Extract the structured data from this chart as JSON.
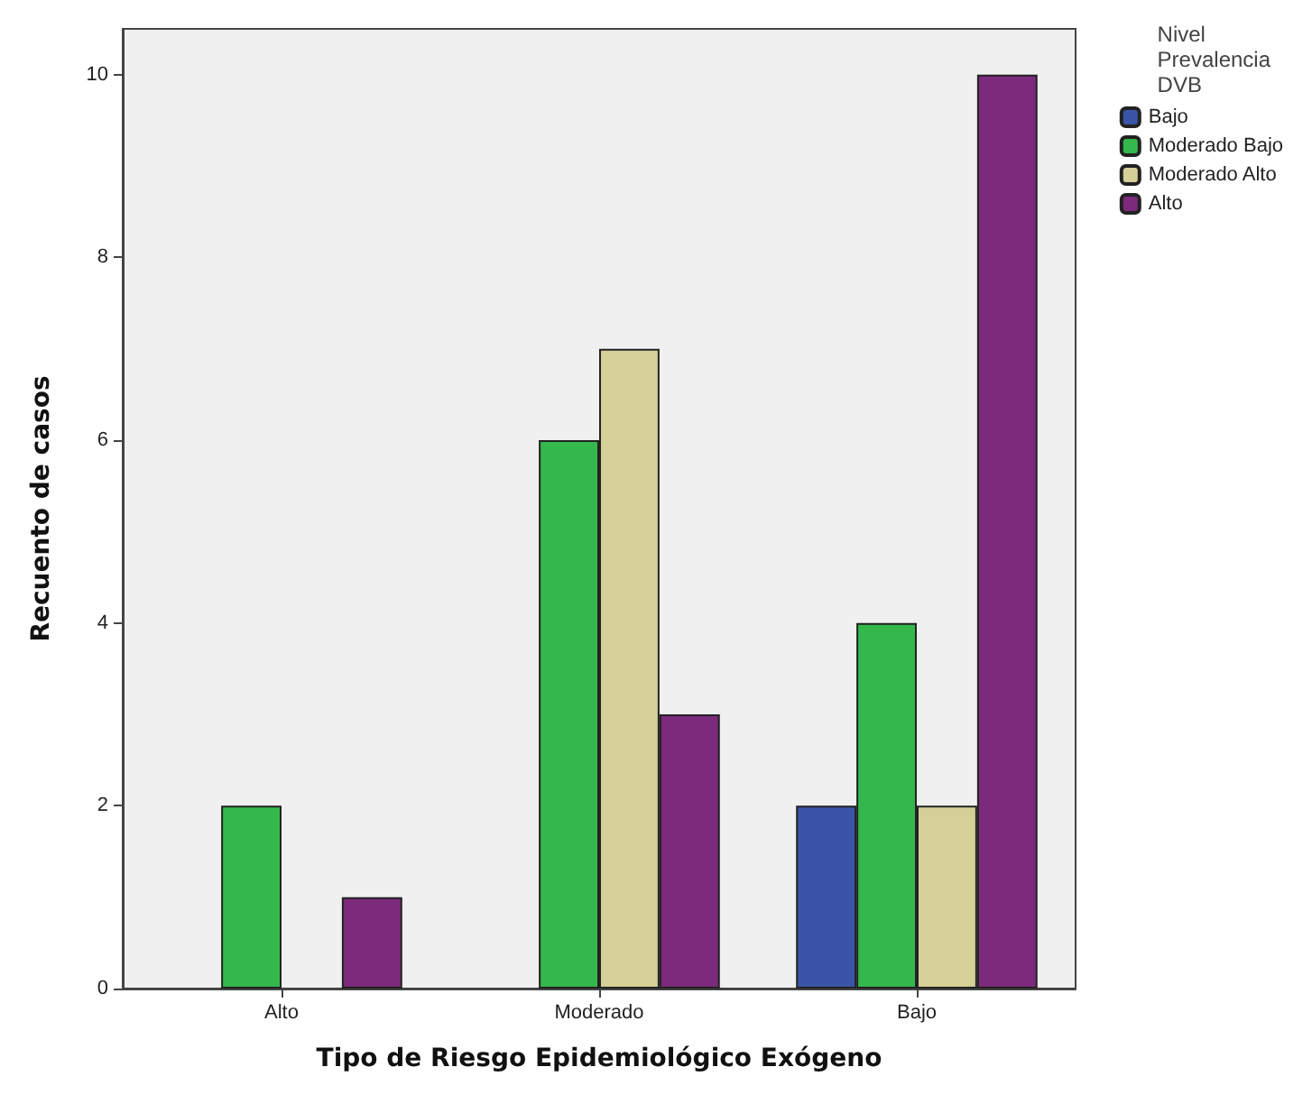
{
  "chart_data": {
    "type": "bar",
    "xlabel": "Tipo de Riesgo Epidemiológico Exógeno",
    "ylabel": "Recuento de casos",
    "legend_title": "Nivel\nPrevalencia\nDVB",
    "categories": [
      "Alto",
      "Moderado",
      "Bajo"
    ],
    "series": [
      {
        "name": "Bajo",
        "color": "#3a55a8",
        "values": [
          null,
          null,
          2
        ]
      },
      {
        "name": "Moderado Bajo",
        "color": "#34b84c",
        "values": [
          2,
          6,
          4
        ]
      },
      {
        "name": "Moderado Alto",
        "color": "#d5cf98",
        "values": [
          null,
          7,
          2
        ]
      },
      {
        "name": "Alto",
        "color": "#7b2a7c",
        "values": [
          1,
          3,
          10
        ]
      }
    ],
    "ylim": [
      0,
      10.5
    ],
    "yticks": [
      0,
      2,
      4,
      6,
      8,
      10
    ],
    "grid": false,
    "legend": "top right"
  }
}
